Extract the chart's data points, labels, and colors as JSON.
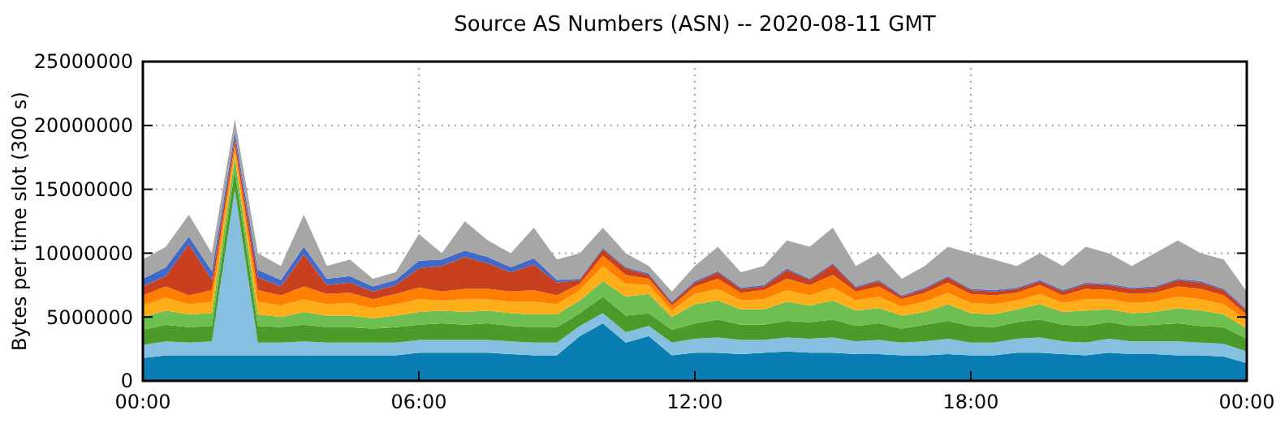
{
  "chart_data": {
    "type": "area",
    "title": "Source AS Numbers (ASN) -- 2020-08-11 GMT",
    "ylabel": "Bytes per time slot (300 s)",
    "stacked": true,
    "grid": true,
    "x": [
      0,
      0.5,
      1,
      1.5,
      2,
      2.5,
      3,
      3.5,
      4,
      4.5,
      5,
      5.5,
      6,
      6.5,
      7,
      7.5,
      8,
      8.5,
      9,
      9.5,
      10,
      10.5,
      11,
      11.5,
      12,
      12.5,
      13,
      13.5,
      14,
      14.5,
      15,
      15.5,
      16,
      16.5,
      17,
      17.5,
      18,
      18.5,
      19,
      19.5,
      20,
      20.5,
      21,
      21.5,
      22,
      22.5,
      23,
      23.5,
      24
    ],
    "xlim": [
      0,
      24
    ],
    "xticks": [
      {
        "value": 0,
        "label": "00:00"
      },
      {
        "value": 6,
        "label": "06:00"
      },
      {
        "value": 12,
        "label": "12:00"
      },
      {
        "value": 18,
        "label": "18:00"
      },
      {
        "value": 24,
        "label": "00:00"
      }
    ],
    "ylim": [
      0,
      25000000
    ],
    "yticks": [
      0,
      5000000,
      10000000,
      15000000,
      20000000,
      25000000
    ],
    "series": [
      {
        "color": "#0a7eb2",
        "values": [
          1800000.0,
          2000000.0,
          2000000.0,
          2000000.0,
          2000000.0,
          2000000.0,
          2000000.0,
          2000000.0,
          2000000.0,
          2000000.0,
          2000000.0,
          2000000.0,
          2200000.0,
          2200000.0,
          2200000.0,
          2200000.0,
          2100000.0,
          2000000.0,
          2000000.0,
          3500000.0,
          4500000.0,
          3000000.0,
          3500000.0,
          2000000.0,
          2200000.0,
          2200000.0,
          2100000.0,
          2200000.0,
          2300000.0,
          2200000.0,
          2200000.0,
          2100000.0,
          2100000.0,
          2000000.0,
          2000000.0,
          2100000.0,
          2000000.0,
          2000000.0,
          2200000.0,
          2200000.0,
          2100000.0,
          2000000.0,
          2200000.0,
          2100000.0,
          2100000.0,
          2000000.0,
          2000000.0,
          1900000.0,
          1400000.0
        ]
      },
      {
        "color": "#86c0e0",
        "values": [
          1000000.0,
          1100000.0,
          1000000.0,
          1100000.0,
          13000000.0,
          1000000.0,
          1000000.0,
          1100000.0,
          1000000.0,
          1000000.0,
          1000000.0,
          1000000.0,
          1000000.0,
          1000000.0,
          1000000.0,
          1000000.0,
          1000000.0,
          1000000.0,
          1000000.0,
          800000.0,
          800000.0,
          800000.0,
          800000.0,
          1000000.0,
          1100000.0,
          1200000.0,
          1100000.0,
          1000000.0,
          1100000.0,
          1100000.0,
          1200000.0,
          1000000.0,
          1100000.0,
          1000000.0,
          1100000.0,
          1200000.0,
          1000000.0,
          1000000.0,
          1100000.0,
          1200000.0,
          1000000.0,
          1000000.0,
          1100000.0,
          1000000.0,
          1000000.0,
          1100000.0,
          1000000.0,
          1000000.0,
          900000.0
        ]
      },
      {
        "color": "#4c9a2a",
        "values": [
          1200000.0,
          1300000.0,
          1200000.0,
          1200000.0,
          1500000.0,
          1300000.0,
          1200000.0,
          1300000.0,
          1200000.0,
          1200000.0,
          1100000.0,
          1200000.0,
          1200000.0,
          1300000.0,
          1200000.0,
          1300000.0,
          1200000.0,
          1200000.0,
          1200000.0,
          1000000.0,
          1300000.0,
          1300000.0,
          1000000.0,
          1000000.0,
          1200000.0,
          1400000.0,
          1200000.0,
          1200000.0,
          1300000.0,
          1300000.0,
          1400000.0,
          1200000.0,
          1300000.0,
          1100000.0,
          1300000.0,
          1400000.0,
          1300000.0,
          1200000.0,
          1300000.0,
          1400000.0,
          1300000.0,
          1300000.0,
          1300000.0,
          1200000.0,
          1300000.0,
          1400000.0,
          1300000.0,
          1300000.0,
          1000000.0
        ]
      },
      {
        "color": "#6cbf50",
        "values": [
          1000000.0,
          1100000.0,
          1000000.0,
          1000000.0,
          1000000.0,
          900000.0,
          800000.0,
          1000000.0,
          900000.0,
          900000.0,
          800000.0,
          900000.0,
          1000000.0,
          1000000.0,
          1000000.0,
          1000000.0,
          1000000.0,
          1000000.0,
          1000000.0,
          1000000.0,
          1200000.0,
          1500000.0,
          1500000.0,
          1000000.0,
          1500000.0,
          1500000.0,
          1200000.0,
          1200000.0,
          1500000.0,
          1300000.0,
          1500000.0,
          1200000.0,
          1200000.0,
          1000000.0,
          1000000.0,
          1300000.0,
          1000000.0,
          1000000.0,
          1000000.0,
          1200000.0,
          1000000.0,
          1200000.0,
          1000000.0,
          1000000.0,
          1000000.0,
          1200000.0,
          1200000.0,
          1000000.0,
          800000.0
        ]
      },
      {
        "color": "#ffae1a",
        "values": [
          900000.0,
          1000000.0,
          800000.0,
          900000.0,
          500000.0,
          1000000.0,
          900000.0,
          1000000.0,
          900000.0,
          1000000.0,
          800000.0,
          900000.0,
          1000000.0,
          800000.0,
          1000000.0,
          900000.0,
          900000.0,
          1000000.0,
          800000.0,
          800000.0,
          1200000.0,
          1000000.0,
          700000.0,
          500000.0,
          800000.0,
          900000.0,
          700000.0,
          800000.0,
          900000.0,
          800000.0,
          1000000.0,
          800000.0,
          900000.0,
          700000.0,
          800000.0,
          900000.0,
          800000.0,
          800000.0,
          700000.0,
          800000.0,
          700000.0,
          900000.0,
          800000.0,
          800000.0,
          800000.0,
          900000.0,
          900000.0,
          800000.0,
          600000.0
        ]
      },
      {
        "color": "#ff7f00",
        "values": [
          800000.0,
          900000.0,
          700000.0,
          900000.0,
          500000.0,
          900000.0,
          800000.0,
          1000000.0,
          800000.0,
          800000.0,
          700000.0,
          800000.0,
          900000.0,
          700000.0,
          800000.0,
          800000.0,
          800000.0,
          900000.0,
          700000.0,
          500000.0,
          800000.0,
          700000.0,
          500000.0,
          400000.0,
          600000.0,
          800000.0,
          600000.0,
          700000.0,
          900000.0,
          800000.0,
          1000000.0,
          700000.0,
          800000.0,
          600000.0,
          700000.0,
          800000.0,
          700000.0,
          700000.0,
          600000.0,
          700000.0,
          600000.0,
          800000.0,
          700000.0,
          700000.0,
          700000.0,
          800000.0,
          800000.0,
          700000.0,
          500000.0
        ]
      },
      {
        "color": "#c8401e",
        "values": [
          700000.0,
          800000.0,
          4000000.0,
          800000.0,
          500000.0,
          1000000.0,
          700000.0,
          2500000.0,
          700000.0,
          800000.0,
          600000.0,
          700000.0,
          1500000.0,
          2000000.0,
          2500000.0,
          2000000.0,
          1500000.0,
          2000000.0,
          1000000.0,
          300000.0,
          500000.0,
          500000.0,
          300000.0,
          200000.0,
          300000.0,
          500000.0,
          300000.0,
          300000.0,
          700000.0,
          400000.0,
          800000.0,
          300000.0,
          400000.0,
          200000.0,
          300000.0,
          400000.0,
          300000.0,
          300000.0,
          300000.0,
          300000.0,
          300000.0,
          400000.0,
          400000.0,
          400000.0,
          400000.0,
          500000.0,
          500000.0,
          400000.0,
          300000.0
        ]
      },
      {
        "color": "#4169c8",
        "values": [
          600000.0,
          700000.0,
          600000.0,
          700000.0,
          500000.0,
          600000.0,
          500000.0,
          600000.0,
          500000.0,
          500000.0,
          400000.0,
          400000.0,
          600000.0,
          500000.0,
          500000.0,
          500000.0,
          400000.0,
          500000.0,
          200000.0,
          100000.0,
          100000.0,
          100000.0,
          100000.0,
          100000.0,
          100000.0,
          100000.0,
          100000.0,
          100000.0,
          100000.0,
          100000.0,
          100000.0,
          100000.0,
          100000.0,
          100000.0,
          100000.0,
          100000.0,
          100000.0,
          100000.0,
          100000.0,
          100000.0,
          100000.0,
          100000.0,
          100000.0,
          100000.0,
          100000.0,
          100000.0,
          100000.0,
          100000.0,
          100000.0
        ]
      },
      {
        "color": "#a6a6a6",
        "values": [
          1500000.0,
          1600000.0,
          1700000.0,
          1400000.0,
          1000000.0,
          1300000.0,
          1100000.0,
          2500000.0,
          1000000.0,
          1300000.0,
          600000.0,
          600000.0,
          2100000.0,
          500000.0,
          2300000.0,
          1300000.0,
          1100000.0,
          2400000.0,
          1600000.0,
          2000000.0,
          1600000.0,
          1100000.0,
          600000.0,
          800000.0,
          1200000.0,
          1900000.0,
          1200000.0,
          1500000.0,
          2200000.0,
          2500000.0,
          2800000.0,
          1600000.0,
          2100000.0,
          1300000.0,
          1700000.0,
          2300000.0,
          2800000.0,
          2400000.0,
          1700000.0,
          2100000.0,
          1900000.0,
          2800000.0,
          2400000.0,
          1700000.0,
          2600000.0,
          3000000.0,
          2200000.0,
          2300000.0,
          1400000.0
        ]
      }
    ]
  }
}
